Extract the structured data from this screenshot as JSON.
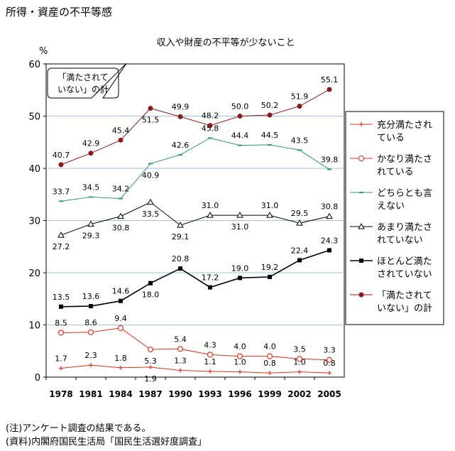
{
  "page_title": "所得・資産の不平等感",
  "notes": {
    "note_1": "(注)アンケート調査の結果である。",
    "note_2": "(資料)内閣府国民生活局「国民生活選好度調査」"
  },
  "chart_data": {
    "type": "line",
    "title": "収入や財産の不平等が少ないこと",
    "ylabel": "%",
    "ylim": [
      0,
      60
    ],
    "yticks": [
      "0",
      "10",
      "20",
      "30",
      "40",
      "50",
      "60"
    ],
    "grid": true,
    "legend_position": "right",
    "callout": "「満たされていない」の計",
    "x": [
      "1978",
      "1981",
      "1984",
      "1987",
      "1990",
      "1993",
      "1996",
      "1999",
      "2002",
      "2005"
    ],
    "series": [
      {
        "name": "充分満たされている",
        "color": "#e0301e",
        "marker": "plus",
        "values": [
          1.7,
          2.3,
          1.8,
          1.9,
          1.3,
          1.1,
          1.0,
          0.8,
          1.0,
          0.8
        ],
        "labels": [
          "1.7",
          "2.3",
          "1.8",
          "1.9",
          "1.3",
          "1.1",
          "1.0",
          "0.8",
          "1.0",
          "0.8"
        ]
      },
      {
        "name": "かなり満たされている",
        "color": "#e0301e",
        "marker": "circle-open",
        "values": [
          8.5,
          8.6,
          9.4,
          5.3,
          5.4,
          4.3,
          4.0,
          4.0,
          3.5,
          3.3
        ],
        "labels": [
          "8.5",
          "8.6",
          "9.4",
          "5.3",
          "5.4",
          "4.3",
          "4.0",
          "4.0",
          "3.5",
          "3.3"
        ]
      },
      {
        "name": "どちらとも言えない",
        "color": "#2e9b6e",
        "marker": "dash",
        "values": [
          33.7,
          34.5,
          34.2,
          40.9,
          42.6,
          45.8,
          44.4,
          44.5,
          43.5,
          39.8
        ],
        "labels": [
          "33.7",
          "34.5",
          "34.2",
          "40.9",
          "42.6",
          "45.8",
          "44.4",
          "44.5",
          "43.5",
          "39.8"
        ]
      },
      {
        "name": "あまり満たされていない",
        "color": "#000000",
        "marker": "triangle-open",
        "values": [
          27.2,
          29.3,
          30.8,
          33.5,
          29.1,
          31.0,
          31.0,
          31.0,
          29.5,
          30.8
        ],
        "labels": [
          "27.2",
          "29.3",
          "30.8",
          "33.5",
          "29.1",
          "31.0",
          "31.0",
          "31.0",
          "29.5",
          "30.8"
        ]
      },
      {
        "name": "ほとんど満たされていない",
        "color": "#000000",
        "marker": "square",
        "values": [
          13.5,
          13.6,
          14.6,
          18.0,
          20.8,
          17.2,
          19.0,
          19.2,
          22.4,
          24.3
        ],
        "labels": [
          "13.5",
          "13.6",
          "14.6",
          "18.0",
          "20.8",
          "17.2",
          "19.0",
          "19.2",
          "22.4",
          "24.3"
        ]
      },
      {
        "name": "「満たされていない」の計",
        "color": "#8b1a1a",
        "marker": "circle",
        "values": [
          40.7,
          42.9,
          45.4,
          51.5,
          49.9,
          48.2,
          50.0,
          50.2,
          51.9,
          55.1
        ],
        "labels": [
          "40.7",
          "42.9",
          "45.4",
          "51.5",
          "49.9",
          "48.2",
          "50.0",
          "50.2",
          "51.9",
          "55.1"
        ]
      }
    ],
    "legend": [
      {
        "line1": "充分満たされ",
        "line2": "ている"
      },
      {
        "line1": "かなり満たさ",
        "line2": "れている"
      },
      {
        "line1": "どちらとも言",
        "line2": "えない"
      },
      {
        "line1": "あまり満たさ",
        "line2": "れていない"
      },
      {
        "line1": "ほとんど満た",
        "line2": "されていない"
      },
      {
        "line1": "「満たされて",
        "line2": "いない」の計"
      }
    ]
  }
}
